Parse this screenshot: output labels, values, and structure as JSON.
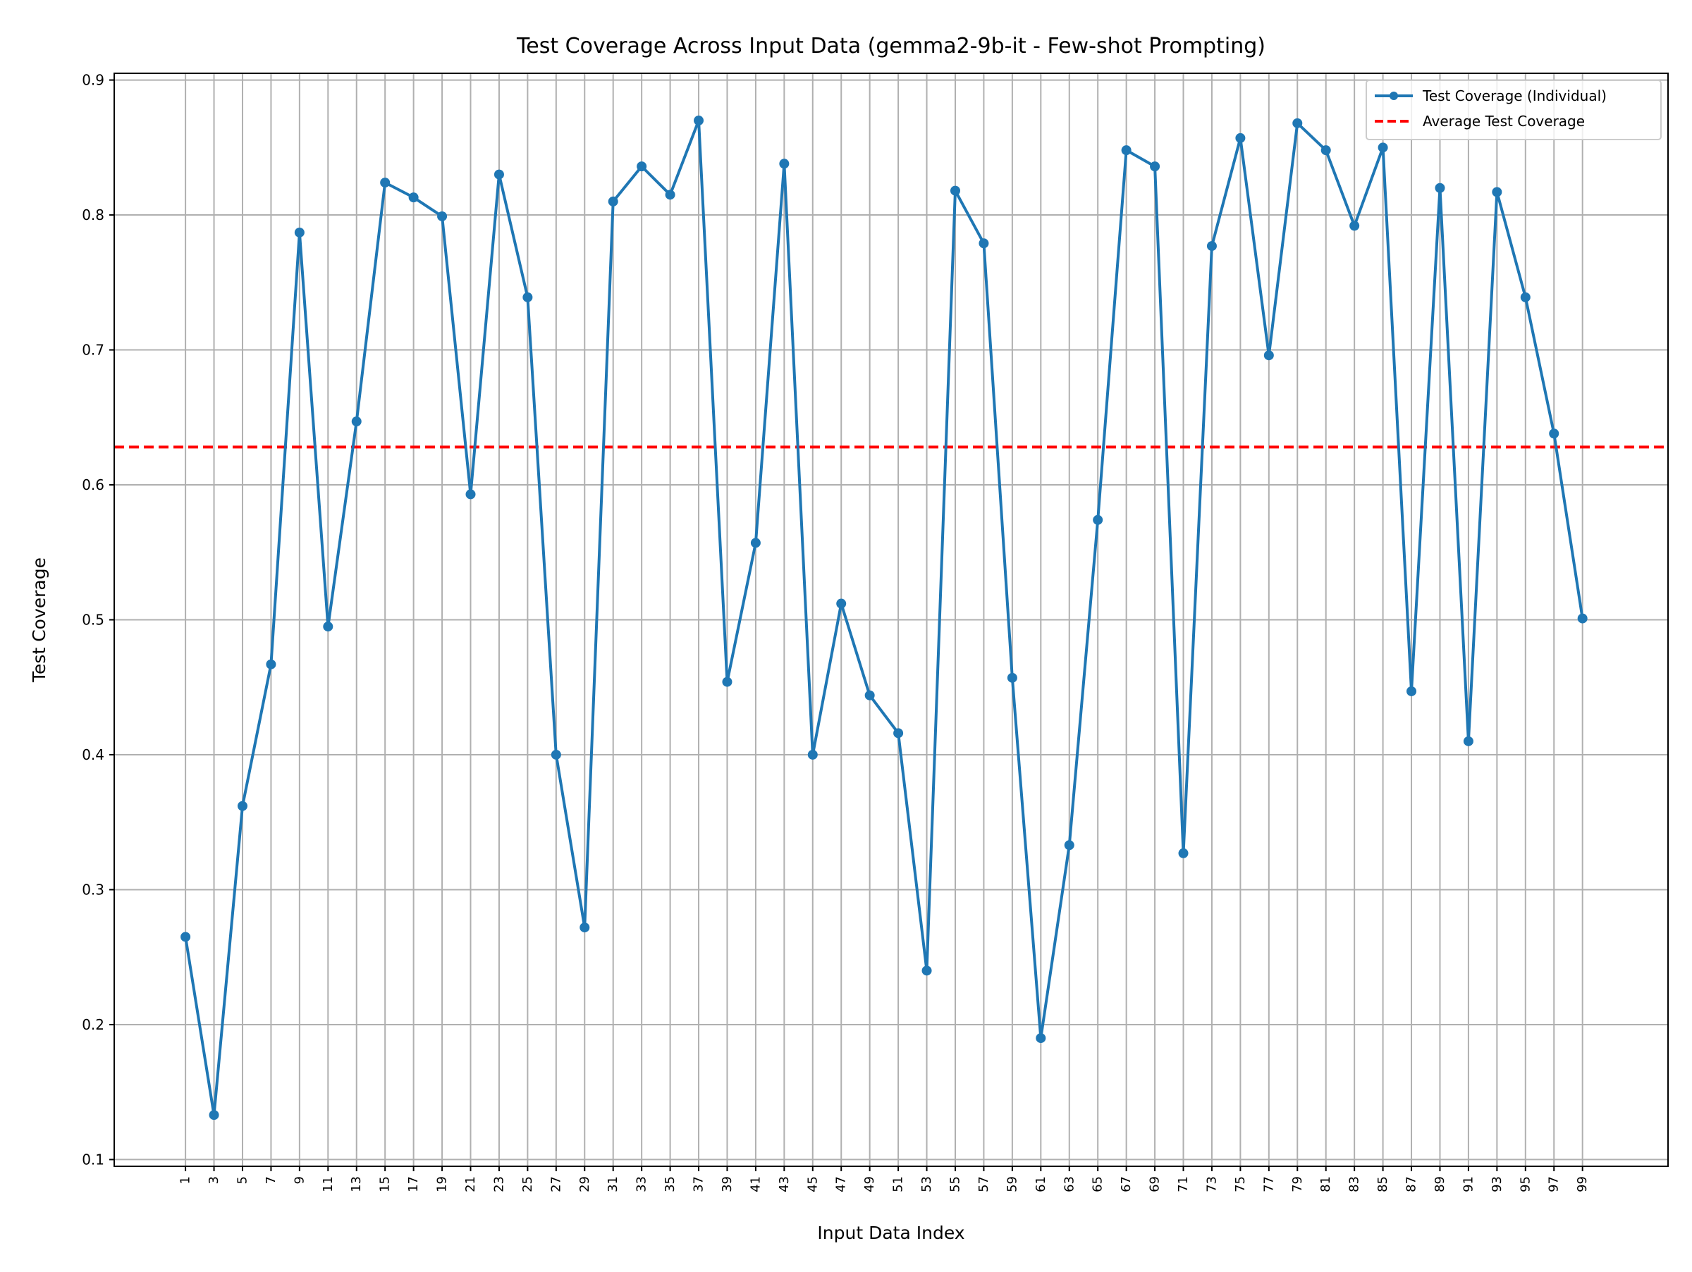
{
  "chart_data": {
    "type": "line",
    "title": "Test Coverage Across Input Data (gemma2-9b-it - Few-shot Prompting)",
    "xlabel": "Input Data Index",
    "ylabel": "Test Coverage",
    "x": [
      1,
      3,
      5,
      7,
      9,
      11,
      13,
      15,
      17,
      19,
      21,
      23,
      25,
      27,
      29,
      31,
      33,
      35,
      37,
      39,
      41,
      43,
      45,
      47,
      49,
      51,
      53,
      55,
      57,
      59,
      61,
      63,
      65,
      67,
      69,
      71,
      73,
      75,
      77,
      79,
      81,
      83,
      85,
      87,
      89,
      91,
      93,
      95,
      97,
      99
    ],
    "x_tick_labels": [
      "1",
      "3",
      "5",
      "7",
      "9",
      "11",
      "13",
      "15",
      "17",
      "19",
      "21",
      "23",
      "25",
      "27",
      "29",
      "31",
      "33",
      "35",
      "37",
      "39",
      "41",
      "43",
      "45",
      "47",
      "49",
      "51",
      "53",
      "55",
      "57",
      "59",
      "61",
      "63",
      "65",
      "67",
      "69",
      "71",
      "73",
      "75",
      "77",
      "79",
      "81",
      "83",
      "85",
      "87",
      "89",
      "91",
      "93",
      "95",
      "97",
      "99"
    ],
    "xlim": [
      -4,
      105
    ],
    "ylim": [
      0.095,
      0.905
    ],
    "y_ticks": [
      0.1,
      0.2,
      0.3,
      0.4,
      0.5,
      0.6,
      0.7,
      0.8,
      0.9
    ],
    "y_tick_labels": [
      "0.1",
      "0.2",
      "0.3",
      "0.4",
      "0.5",
      "0.6",
      "0.7",
      "0.8",
      "0.9"
    ],
    "grid": true,
    "legend_position": "top-right",
    "series": [
      {
        "name": "Test Coverage (Individual)",
        "color": "#1f77b4",
        "style": "line-with-markers",
        "values": [
          0.265,
          0.133,
          0.362,
          0.467,
          0.787,
          0.495,
          0.647,
          0.824,
          0.813,
          0.799,
          0.593,
          0.83,
          0.739,
          0.4,
          0.272,
          0.81,
          0.836,
          0.815,
          0.87,
          0.454,
          0.557,
          0.838,
          0.4,
          0.512,
          0.444,
          0.416,
          0.24,
          0.818,
          0.779,
          0.457,
          0.19,
          0.333,
          0.574,
          0.848,
          0.836,
          0.327,
          0.777,
          0.857,
          0.696,
          0.868,
          0.848,
          0.792,
          0.85,
          0.447,
          0.82,
          0.41,
          0.817,
          0.739,
          0.638,
          0.501
        ]
      }
    ],
    "reference_lines": [
      {
        "name": "Average Test Coverage",
        "orientation": "horizontal",
        "value": 0.628,
        "color": "#ff0000",
        "style": "dashed"
      }
    ]
  }
}
